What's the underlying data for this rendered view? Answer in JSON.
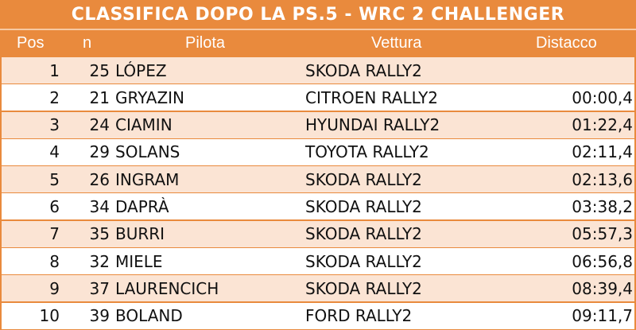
{
  "title": "CLASSIFICA DOPO LA PS.5 - WRC 2 CHALLENGER",
  "columns": {
    "pos": "Pos",
    "n": "n",
    "pilota": "Pilota",
    "vettura": "Vettura",
    "distacco": "Distacco"
  },
  "rows": [
    {
      "pos": "1",
      "n": "25",
      "pilota": "LÓPEZ",
      "vettura": "SKODA RALLY2",
      "distacco": ""
    },
    {
      "pos": "2",
      "n": "21",
      "pilota": "GRYAZIN",
      "vettura": "CITROEN RALLY2",
      "distacco": "00:00,4"
    },
    {
      "pos": "3",
      "n": "24",
      "pilota": "CIAMIN",
      "vettura": "HYUNDAI RALLY2",
      "distacco": "01:22,4"
    },
    {
      "pos": "4",
      "n": "29",
      "pilota": "SOLANS",
      "vettura": "TOYOTA RALLY2",
      "distacco": "02:11,4"
    },
    {
      "pos": "5",
      "n": "26",
      "pilota": "INGRAM",
      "vettura": "SKODA RALLY2",
      "distacco": "02:13,6"
    },
    {
      "pos": "6",
      "n": "34",
      "pilota": "DAPRÀ",
      "vettura": "SKODA RALLY2",
      "distacco": "03:38,2"
    },
    {
      "pos": "7",
      "n": "35",
      "pilota": "BURRI",
      "vettura": "SKODA RALLY2",
      "distacco": "05:57,3"
    },
    {
      "pos": "8",
      "n": "32",
      "pilota": "MIELE",
      "vettura": "SKODA RALLY2",
      "distacco": "06:56,8"
    },
    {
      "pos": "9",
      "n": "37",
      "pilota": "LAURENCICH",
      "vettura": "SKODA RALLY2",
      "distacco": "08:39,4"
    },
    {
      "pos": "10",
      "n": "39",
      "pilota": "BOLAND",
      "vettura": "FORD RALLY2",
      "distacco": "09:11,7"
    }
  ],
  "colors": {
    "header_bg": "#e98a3d",
    "row_alt": "#fbe4d4",
    "row_plain": "#ffffff"
  }
}
